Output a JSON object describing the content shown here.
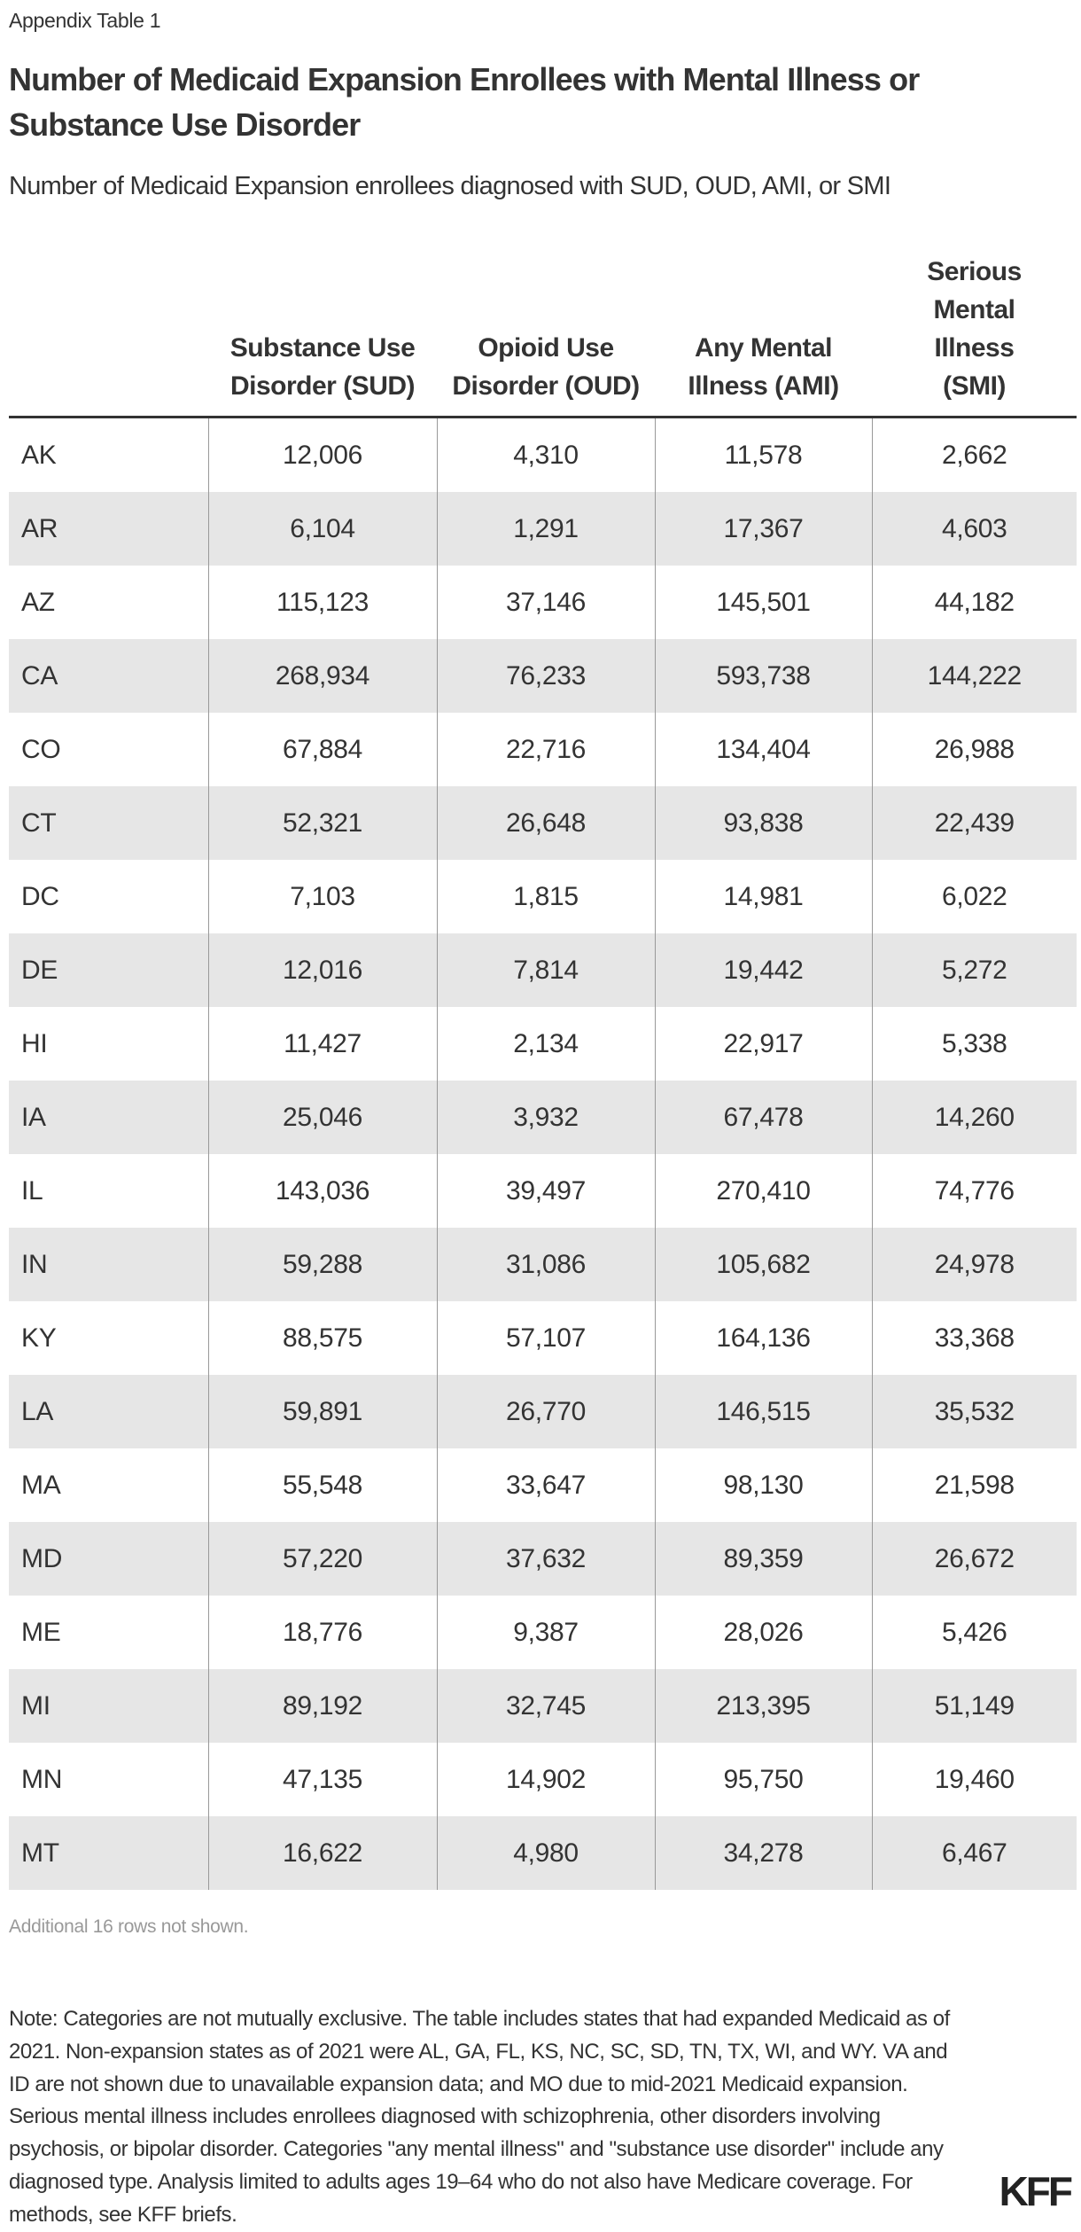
{
  "eyebrow": "Appendix Table 1",
  "title": "Number of Medicaid Expansion Enrollees with Mental Illness or Substance Use Disorder",
  "subtitle": "Number of Medicaid Expansion enrollees diagnosed with SUD, OUD, AMI, or SMI",
  "table": {
    "headers": [
      "",
      "Substance Use Disorder (SUD)",
      "Opioid Use Disorder (OUD)",
      "Any Mental Illness (AMI)",
      "Serious Mental Illness (SMI)"
    ],
    "rows": [
      [
        "AK",
        "12,006",
        "4,310",
        "11,578",
        "2,662"
      ],
      [
        "AR",
        "6,104",
        "1,291",
        "17,367",
        "4,603"
      ],
      [
        "AZ",
        "115,123",
        "37,146",
        "145,501",
        "44,182"
      ],
      [
        "CA",
        "268,934",
        "76,233",
        "593,738",
        "144,222"
      ],
      [
        "CO",
        "67,884",
        "22,716",
        "134,404",
        "26,988"
      ],
      [
        "CT",
        "52,321",
        "26,648",
        "93,838",
        "22,439"
      ],
      [
        "DC",
        "7,103",
        "1,815",
        "14,981",
        "6,022"
      ],
      [
        "DE",
        "12,016",
        "7,814",
        "19,442",
        "5,272"
      ],
      [
        "HI",
        "11,427",
        "2,134",
        "22,917",
        "5,338"
      ],
      [
        "IA",
        "25,046",
        "3,932",
        "67,478",
        "14,260"
      ],
      [
        "IL",
        "143,036",
        "39,497",
        "270,410",
        "74,776"
      ],
      [
        "IN",
        "59,288",
        "31,086",
        "105,682",
        "24,978"
      ],
      [
        "KY",
        "88,575",
        "57,107",
        "164,136",
        "33,368"
      ],
      [
        "LA",
        "59,891",
        "26,770",
        "146,515",
        "35,532"
      ],
      [
        "MA",
        "55,548",
        "33,647",
        "98,130",
        "21,598"
      ],
      [
        "MD",
        "57,220",
        "37,632",
        "89,359",
        "26,672"
      ],
      [
        "ME",
        "18,776",
        "9,387",
        "28,026",
        "5,426"
      ],
      [
        "MI",
        "89,192",
        "32,745",
        "213,395",
        "51,149"
      ],
      [
        "MN",
        "47,135",
        "14,902",
        "95,750",
        "19,460"
      ],
      [
        "MT",
        "16,622",
        "4,980",
        "34,278",
        "6,467"
      ]
    ],
    "stripe_color": "#e6e6e6"
  },
  "more_rows": "Additional 16 rows not shown.",
  "note": "Note: Categories are not mutually exclusive. The table includes states that had expanded Medicaid as of 2021. Non-expansion states as of 2021 were AL, GA, FL, KS, NC, SC, SD, TN, TX, WI, and WY. VA and ID are not shown due to unavailable expansion data; and MO due to mid-2021 Medicaid expansion. Serious mental illness includes enrollees diagnosed with schizophrenia, other disorders involving psychosis, or bipolar disorder. Categories \"any mental illness\" and \"substance use disorder\" include any diagnosed type. Analysis limited to adults ages 19–64 who do not also have Medicare coverage. For methods, see KFF briefs.",
  "logo": "KFF"
}
